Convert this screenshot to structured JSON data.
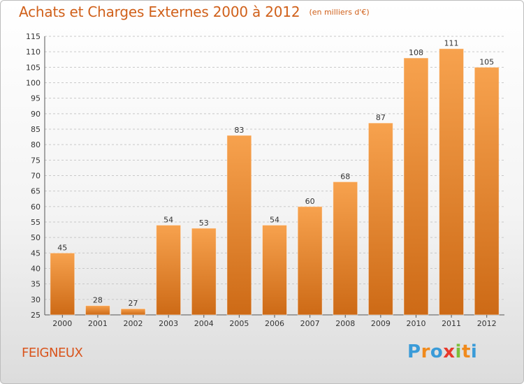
{
  "chart_data": {
    "type": "bar",
    "title": "Achats et Charges Externes 2000 à 2012",
    "unit": "(en milliers d'€)",
    "categories": [
      "2000",
      "2001",
      "2002",
      "2003",
      "2004",
      "2005",
      "2006",
      "2007",
      "2008",
      "2009",
      "2010",
      "2011",
      "2012"
    ],
    "values": [
      45,
      28,
      27,
      54,
      53,
      83,
      54,
      60,
      68,
      87,
      108,
      111,
      105
    ],
    "value_labels": [
      "45",
      "28",
      "27",
      "54",
      "53",
      "83",
      "54",
      "60",
      "68",
      "87",
      "108",
      "111",
      "105"
    ],
    "ylim": [
      25,
      115
    ],
    "yticks": [
      25,
      30,
      35,
      40,
      45,
      50,
      55,
      60,
      65,
      70,
      75,
      80,
      85,
      90,
      95,
      100,
      105,
      110,
      115
    ],
    "ytick_labels": [
      "25",
      "30",
      "35",
      "40",
      "45",
      "50",
      "55",
      "60",
      "65",
      "70",
      "75",
      "80",
      "85",
      "90",
      "95",
      "100",
      "105",
      "110",
      "115"
    ],
    "grid": "horizontal dashed",
    "xlabel": "",
    "ylabel": "",
    "colors": {
      "bar_top": "#f7a24e",
      "bar_bottom": "#cd6a16",
      "title": "#d0601a",
      "grid": "#c8c8c8",
      "axis": "#555555"
    }
  },
  "footer": {
    "commune": "FEIGNEUX",
    "brand": "Proxiti",
    "brand_letters": [
      "P",
      "r",
      "o",
      "x",
      "i",
      "t",
      "i"
    ],
    "brand_colors": [
      "#3a9bd8",
      "#f08a1c",
      "#3a9bd8",
      "#e8392c",
      "#7cbf3a",
      "#f08a1c",
      "#3a9bd8"
    ]
  }
}
